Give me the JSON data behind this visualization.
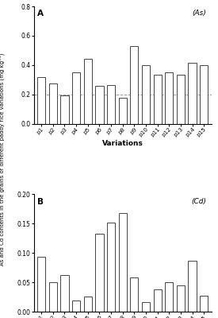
{
  "categories": [
    "p1",
    "p2",
    "p3",
    "p4",
    "p5",
    "p6",
    "p7",
    "p8",
    "p9",
    "p10",
    "p11",
    "p12",
    "p13",
    "p14",
    "p15"
  ],
  "as_values": [
    0.32,
    0.275,
    0.195,
    0.35,
    0.445,
    0.26,
    0.265,
    0.175,
    0.53,
    0.4,
    0.335,
    0.35,
    0.335,
    0.415,
    0.4
  ],
  "cd_values": [
    0.094,
    0.05,
    0.062,
    0.019,
    0.026,
    0.133,
    0.152,
    0.168,
    0.058,
    0.016,
    0.038,
    0.05,
    0.045,
    0.086,
    0.027
  ],
  "as_ylim": [
    0.0,
    0.8
  ],
  "cd_ylim": [
    0.0,
    0.2
  ],
  "as_yticks": [
    0.0,
    0.2,
    0.4,
    0.6,
    0.8
  ],
  "cd_yticks": [
    0.0,
    0.05,
    0.1,
    0.15,
    0.2
  ],
  "ylabel": "As and Cd contents in the grains of different paddy rice variations (mg kg⁻¹)",
  "xlabel": "Variations",
  "label_A": "A",
  "label_B": "B",
  "tag_As": "(As)",
  "tag_Cd": "(Cd)",
  "as_hline": 0.2,
  "bar_color": "white",
  "bar_edgecolor": "#444444",
  "background_color": "white",
  "dashed_line_color": "#999999"
}
